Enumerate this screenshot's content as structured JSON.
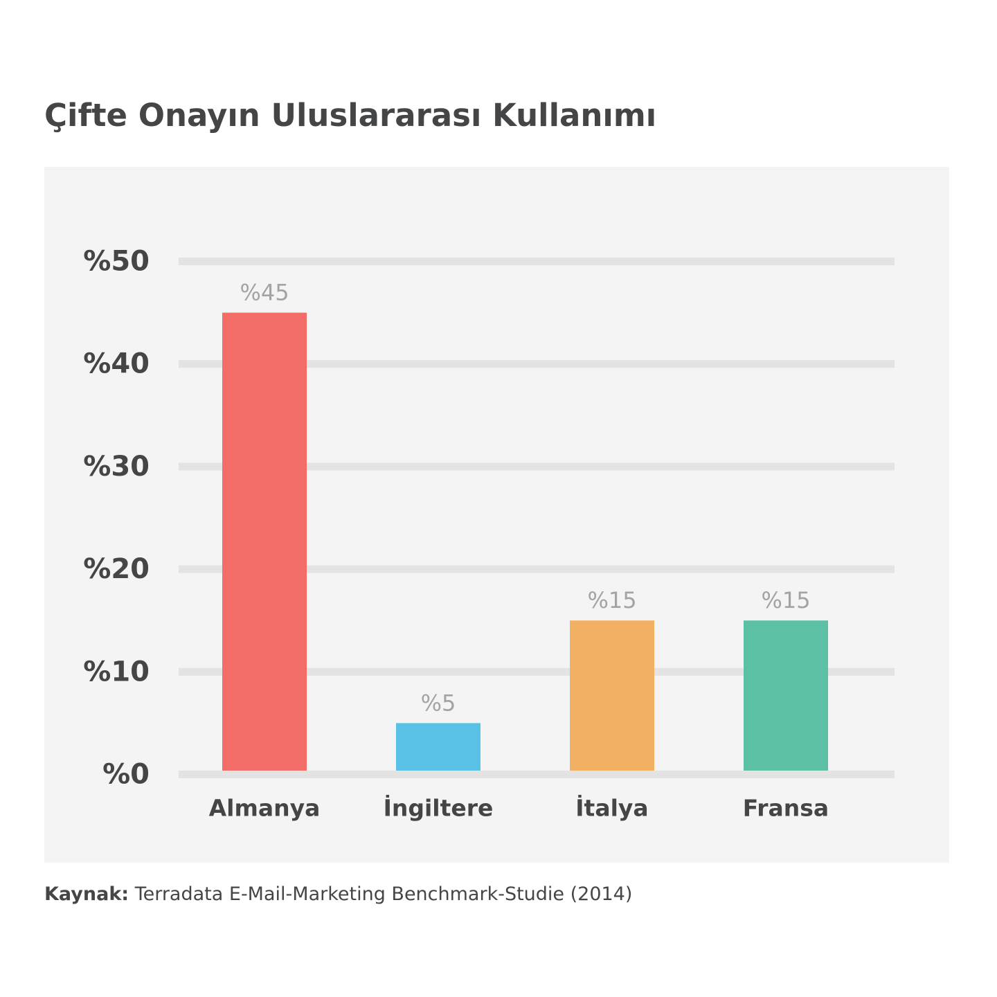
{
  "header": {
    "title": "Çifte Onayın Uluslararası Kullanımı"
  },
  "footer": {
    "source_label": "Kaynak:",
    "source_text": " Terradata E-Mail-Marketing Benchmark-Studie (2014)"
  },
  "chart_data": {
    "type": "bar",
    "title": "Çifte Onayın Uluslararası Kullanımı",
    "xlabel": "",
    "ylabel": "",
    "categories": [
      "Almanya",
      "İngiltere",
      "İtalya",
      "Fransa"
    ],
    "values": [
      45,
      5,
      15,
      15
    ],
    "value_labels": [
      "%45",
      "%5",
      "%15",
      "%15"
    ],
    "colors": [
      "#f26d67",
      "#5ac1e6",
      "#f1b062",
      "#5cc0a4"
    ],
    "ylim": [
      0,
      50
    ],
    "yticks": [
      0,
      10,
      20,
      30,
      40,
      50
    ],
    "ytick_labels": [
      "%0",
      "%10",
      "%20",
      "%30",
      "%40",
      "%50"
    ],
    "grid": true,
    "legend": "none",
    "colors_theme": {
      "panel_background": "#f4f4f4",
      "gridline": "#e3e3e3",
      "axis_text": "#444547",
      "value_label_text": "#a3a3a3"
    }
  }
}
